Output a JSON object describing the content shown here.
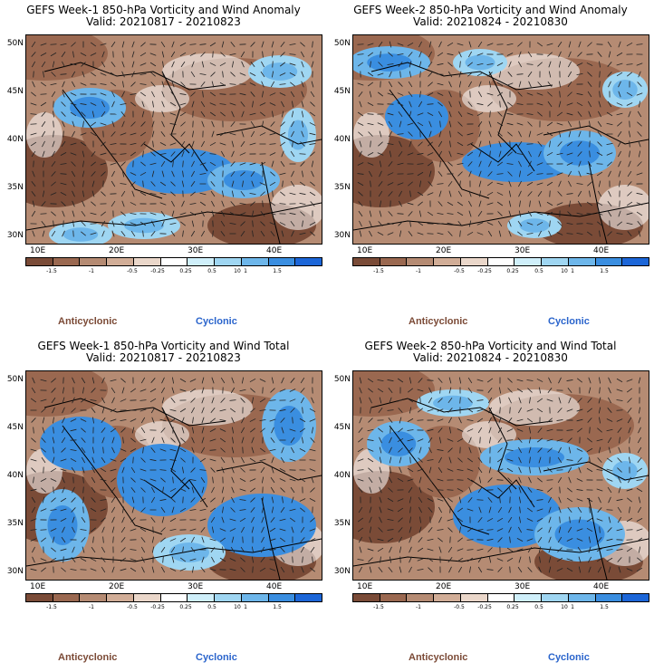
{
  "panels": [
    {
      "id": "p1",
      "title": "GEFS Week-1 850-hPa Vorticity and Wind Anomaly",
      "valid": "Valid: 20210817 - 20210823"
    },
    {
      "id": "p2",
      "title": "GEFS Week-2 850-hPa Vorticity and Wind Anomaly",
      "valid": "Valid: 20210824 - 20210830"
    },
    {
      "id": "p3",
      "title": "GEFS Week-1 850-hPa Vorticity and Wind Total",
      "valid": "Valid: 20210817 - 20210823"
    },
    {
      "id": "p4",
      "title": "GEFS Week-2 850-hPa Vorticity and Wind Total",
      "valid": "Valid: 20210824 - 20210830"
    }
  ],
  "axes": {
    "lat_labels": [
      "50N",
      "45N",
      "40N",
      "35N",
      "30N"
    ],
    "lon_labels": [
      "10E",
      "20E",
      "30E",
      "40E"
    ]
  },
  "colorbar": {
    "labels": [
      "-1.5",
      "-1",
      "-0.5",
      "-0.25",
      "0.25",
      "0.5",
      "1",
      "1.5"
    ],
    "scale_text": "10",
    "colors": [
      "#7a4b37",
      "#9a6850",
      "#b58b73",
      "#d1ad97",
      "#ead7ca",
      "#ffffff",
      "#cfeffa",
      "#9fd6f2",
      "#6db6ea",
      "#3a8ee0",
      "#1c66d8"
    ]
  },
  "legend": {
    "anticyclonic": "Anticyclonic",
    "cyclonic": "Cyclonic"
  }
}
